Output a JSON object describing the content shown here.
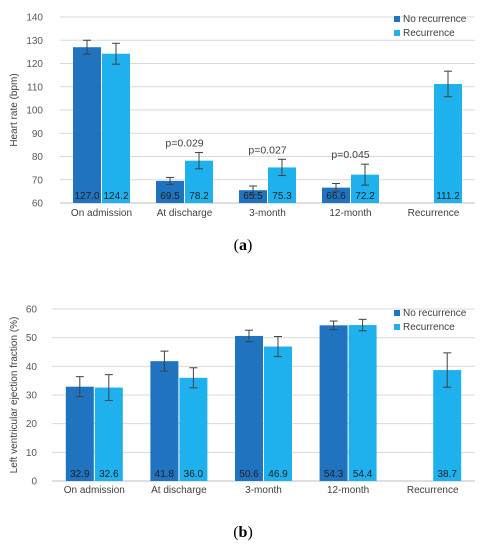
{
  "colors": {
    "no_recurrence": "#1f73bf",
    "recurrence": "#1fb1ee",
    "gridline": "#d9d9d9",
    "axis": "#bfbfbf",
    "errorbar": "#404040"
  },
  "chart_data": [
    {
      "type": "bar",
      "panel_label": "(a)",
      "panel_letter": "a",
      "ylabel": "Heart rate (bpm)",
      "xlabel": "",
      "ylim": [
        60,
        140
      ],
      "yticks": [
        60,
        70,
        80,
        90,
        100,
        110,
        120,
        130,
        140
      ],
      "grid": true,
      "legend_position": "top-right",
      "categories": [
        "On admission",
        "At discharge",
        "3-month",
        "12-month",
        "Recurrence"
      ],
      "series": [
        {
          "name": "No recurrence",
          "values": [
            127.0,
            69.5,
            65.5,
            66.6,
            null
          ],
          "labels": [
            "127.0",
            "69.5",
            "65.5",
            "66.6",
            null
          ],
          "errors": [
            3.0,
            1.5,
            1.8,
            1.8,
            null
          ]
        },
        {
          "name": "Recurrence",
          "values": [
            124.2,
            78.2,
            75.3,
            72.2,
            111.2
          ],
          "labels": [
            "124.2",
            "78.2",
            "75.3",
            "72.2",
            "111.2"
          ],
          "errors": [
            4.5,
            3.5,
            3.5,
            4.5,
            5.5
          ]
        }
      ],
      "annotations": [
        "",
        "p=0.029",
        "p=0.027",
        "p=0.045",
        ""
      ]
    },
    {
      "type": "bar",
      "panel_label": "(b)",
      "panel_letter": "b",
      "ylabel": "Left ventricular ejection fraction (%)",
      "xlabel": "",
      "ylim": [
        0,
        60
      ],
      "yticks": [
        0,
        10,
        20,
        30,
        40,
        50,
        60
      ],
      "grid": true,
      "legend_position": "top-right",
      "categories": [
        "On admission",
        "At discharge",
        "3-month",
        "12-month",
        "Recurrence"
      ],
      "series": [
        {
          "name": "No recurrence",
          "values": [
            32.9,
            41.8,
            50.6,
            54.3,
            null
          ],
          "labels": [
            "32.9",
            "41.8",
            "50.6",
            "54.3",
            null
          ],
          "errors": [
            3.5,
            3.5,
            2.0,
            1.5,
            null
          ]
        },
        {
          "name": "Recurrence",
          "values": [
            32.6,
            36.0,
            46.9,
            54.4,
            38.7
          ],
          "labels": [
            "32.6",
            "36.0",
            "46.9",
            "54.4",
            "38.7"
          ],
          "errors": [
            4.5,
            3.5,
            3.5,
            2.0,
            6.0
          ]
        }
      ],
      "annotations": [
        "",
        "",
        "",
        "",
        ""
      ]
    }
  ]
}
